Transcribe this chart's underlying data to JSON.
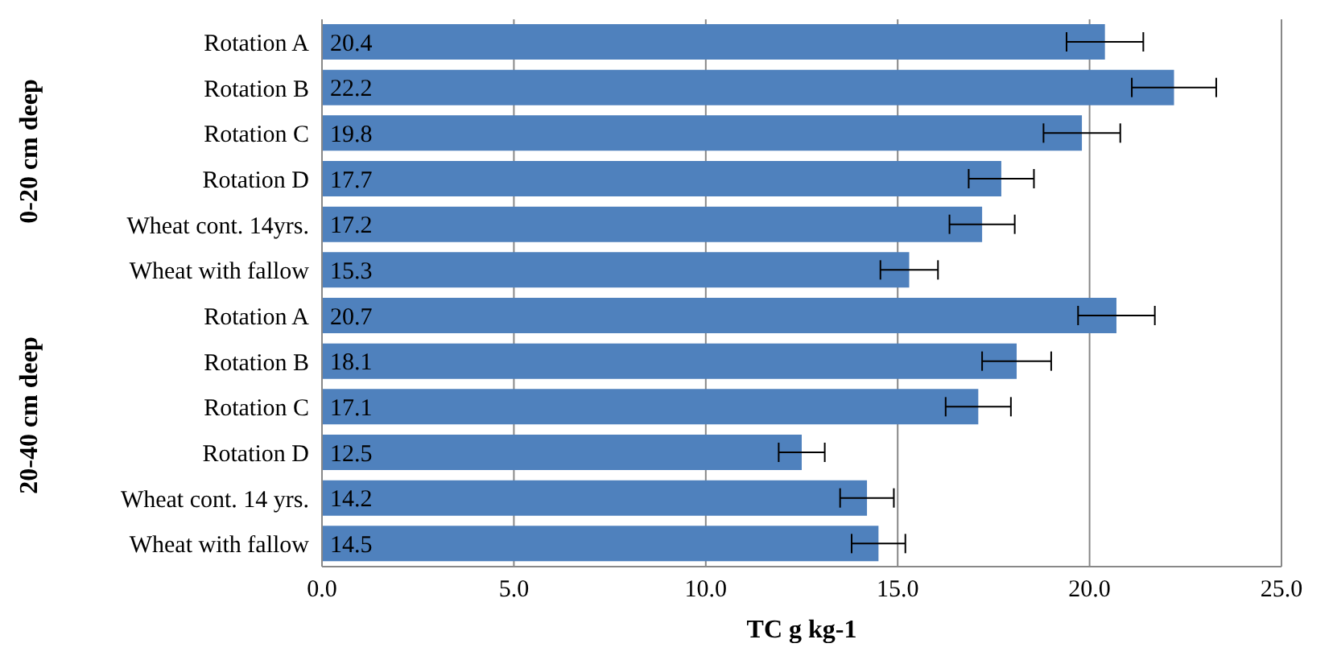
{
  "chart_data": {
    "type": "bar",
    "orientation": "horizontal",
    "xlabel": "TC g kg-1",
    "categories": [
      "Rotation A",
      "Rotation B",
      "Rotation C",
      "Rotation D",
      "Wheat cont. 14yrs.",
      "Wheat with fallow",
      "Rotation A",
      "Rotation B",
      "Rotation C",
      "Rotation D",
      "Wheat cont. 14 yrs.",
      "Wheat with fallow"
    ],
    "values": [
      20.4,
      22.2,
      19.8,
      17.7,
      17.2,
      15.3,
      20.7,
      18.1,
      17.1,
      12.5,
      14.2,
      14.5
    ],
    "errors": [
      1.0,
      1.1,
      1.0,
      0.85,
      0.85,
      0.75,
      1.0,
      0.9,
      0.85,
      0.6,
      0.7,
      0.7
    ],
    "color": "#4f81bd",
    "data_labels": true,
    "grid": "x",
    "legend": false,
    "xlim": [
      0,
      25
    ],
    "xticks": [
      {
        "value": 0,
        "label": "0.0"
      },
      {
        "value": 5,
        "label": "5.0"
      },
      {
        "value": 10,
        "label": "10.0"
      },
      {
        "value": 15,
        "label": "15.0"
      },
      {
        "value": 20,
        "label": "20.0"
      },
      {
        "value": 25,
        "label": "25.0"
      }
    ],
    "annotations": [
      "0-20 cm deep",
      "20-40 cm deep"
    ]
  }
}
